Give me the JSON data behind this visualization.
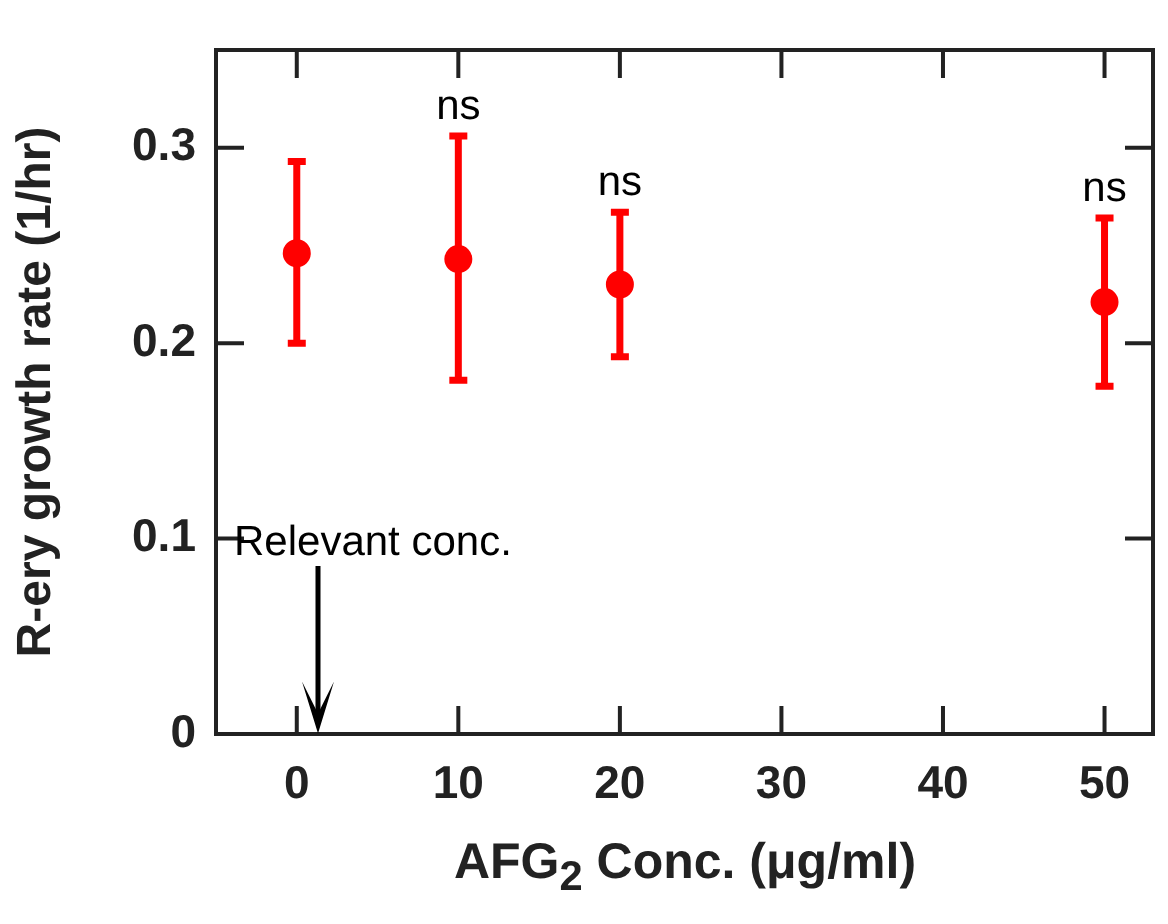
{
  "chart_data": {
    "type": "scatter",
    "xlabel": "AFG$_{2}$ Conc. (μg/ml)",
    "ylabel": "R-ery growth rate (1/hr)",
    "x": [
      0,
      10,
      20,
      50
    ],
    "series": [
      {
        "color": "#ff0000",
        "values": [
          0.246,
          0.243,
          0.23,
          0.221
        ],
        "errors": [
          [
            0.2,
            0.293
          ],
          [
            0.181,
            0.306
          ],
          [
            0.193,
            0.267
          ],
          [
            0.178,
            0.264
          ]
        ]
      }
    ],
    "xlim": [
      -5,
      53
    ],
    "xticks": [
      0,
      10,
      20,
      30,
      40,
      50
    ],
    "ylim": [
      0,
      0.35
    ],
    "yticks": [
      0,
      0.1,
      0.2,
      0.3
    ],
    "marker": "circle",
    "grid": false,
    "legend": false,
    "annotations": [
      {
        "text": "ns",
        "x": 10,
        "y": 0.306
      },
      {
        "text": "ns",
        "x": 20,
        "y": 0.267
      },
      {
        "text": "ns",
        "x": 50,
        "y": 0.264
      },
      "Relevant conc."
    ]
  }
}
